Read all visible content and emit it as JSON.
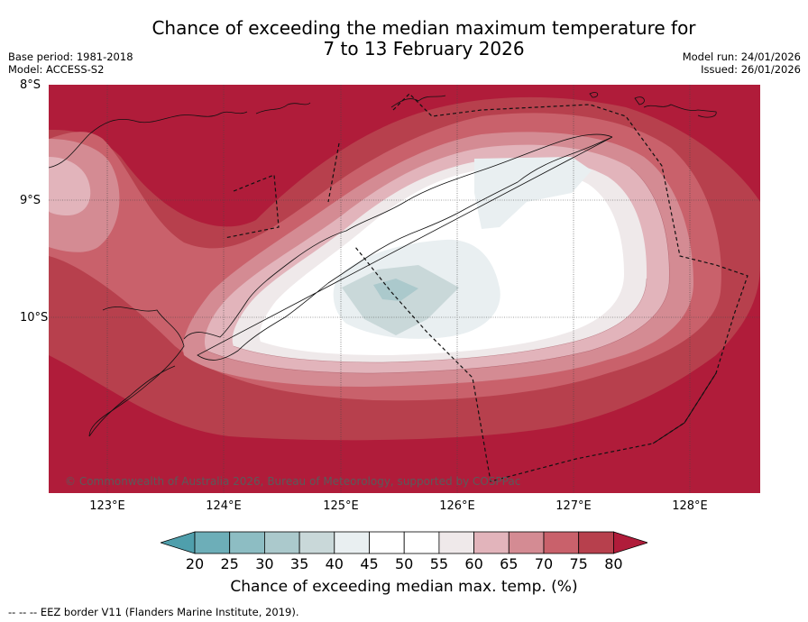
{
  "title": {
    "line1": "Chance of exceeding the median maximum temperature for",
    "line2": "7 to 13 February 2026"
  },
  "meta": {
    "base_period": "Base period: 1981-2018",
    "model": "Model: ACCESS-S2",
    "model_run": "Model run: 24/01/2026",
    "issued": "Issued: 26/01/2026"
  },
  "map": {
    "lat_labels": [
      "8°S",
      "9°S",
      "10°S"
    ],
    "lon_labels": [
      "123°E",
      "124°E",
      "125°E",
      "126°E",
      "127°E",
      "128°E"
    ],
    "copyright": "© Commonwealth of Australia 2026, Bureau of Meteorology, supported by COSPPac"
  },
  "colorbar": {
    "labels": [
      "20",
      "25",
      "30",
      "35",
      "40",
      "45",
      "50",
      "55",
      "60",
      "65",
      "70",
      "75",
      "80"
    ],
    "colors": [
      "#4f9fac",
      "#6daeb8",
      "#8dbdc3",
      "#abc9cc",
      "#c9d8d9",
      "#e9eff1",
      "#ffffff",
      "#ffffff",
      "#efe9ea",
      "#e2b4bb",
      "#d48b93",
      "#c9616b",
      "#b7404d",
      "#b01c3a"
    ],
    "title": "Chance of exceeding median max. temp. (%)"
  },
  "footnote": "--  --  -- EEZ border V11 (Flanders Marine Institute, 2019)."
}
